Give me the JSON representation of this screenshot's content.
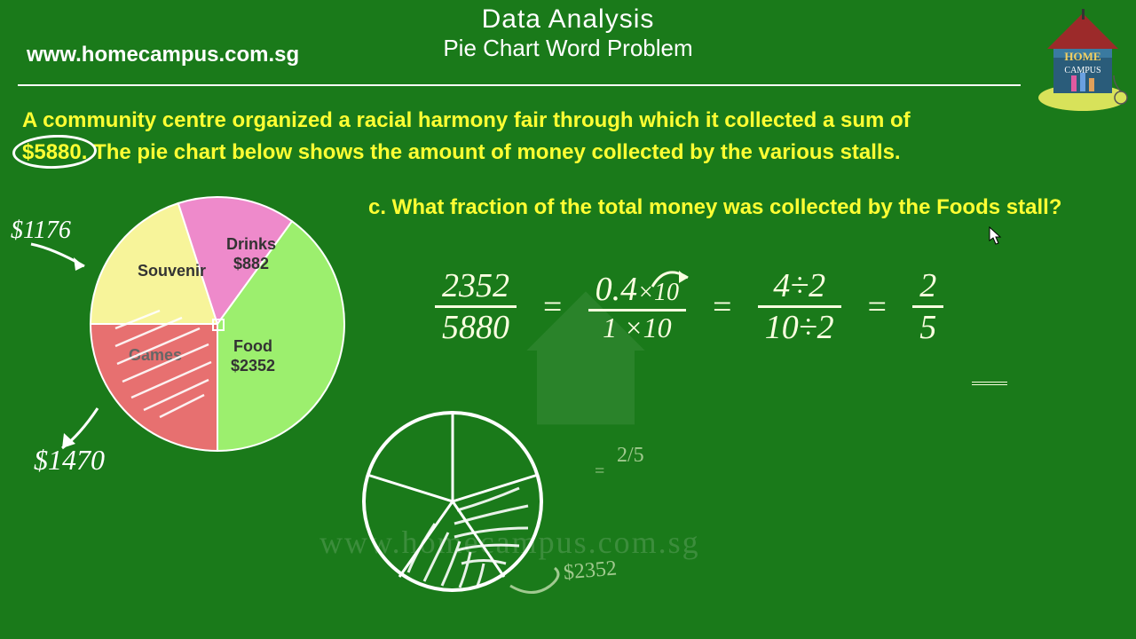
{
  "header": {
    "title": "Data Analysis",
    "subtitle": "Pie Chart Word Problem",
    "url": "www.homecampus.com.sg"
  },
  "problem": {
    "line1": "A community centre organized a racial harmony fair through which it collected a sum of",
    "highlight": "$5880.",
    "line2_rest": " The pie chart below shows the amount of money collected by the various stalls."
  },
  "question": "c. What fraction of the total money was collected by the Foods stall?",
  "pie": {
    "slices": [
      {
        "label": "Souvenir",
        "value": 1176,
        "amount": "",
        "color": "#f7f49a",
        "start": 270,
        "sweep": 72
      },
      {
        "label": "Drinks",
        "value": 882,
        "amount": "$882",
        "color": "#ee8acb",
        "start": 342,
        "sweep": 54
      },
      {
        "label": "Food",
        "value": 2352,
        "amount": "$2352",
        "color": "#9cef6e",
        "start": 36,
        "sweep": 144
      },
      {
        "label": "Games",
        "value": 1470,
        "amount": "",
        "color": "#e77070",
        "start": 180,
        "sweep": 90
      }
    ],
    "stroke": "#ffffff"
  },
  "annotations": {
    "souvenir_amount": "$1176",
    "games_amount": "$1470"
  },
  "equation": {
    "f1_num": "2352",
    "f1_den": "5880",
    "f2_num": "0.4",
    "f2_num_suffix": "×10",
    "f2_den": "1 ×10",
    "f3_num": "4÷2",
    "f3_den": "10÷2",
    "f4_num": "2",
    "f4_den": "5"
  },
  "sketch_labels": {
    "frac": "2/5",
    "amount": "$2352"
  },
  "watermark": "www.homecampus.com.sg"
}
